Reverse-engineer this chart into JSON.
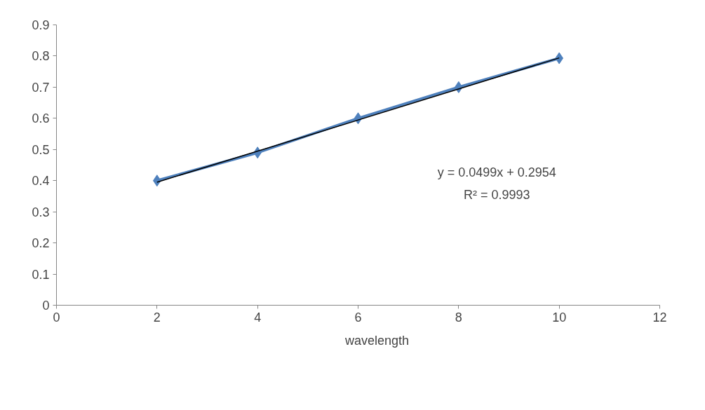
{
  "chart_data": {
    "type": "line",
    "x": [
      2,
      4,
      6,
      8,
      10
    ],
    "series": [
      {
        "name": "wavelength",
        "color": "#4f81bd",
        "values": [
          0.4,
          0.49,
          0.6,
          0.7,
          0.793
        ],
        "marker": "diamond"
      },
      {
        "type": "line",
        "color": "#000000",
        "x": [
          2,
          10
        ],
        "values": [
          0.395,
          0.794
        ],
        "marker": "none"
      }
    ],
    "annotations": [
      "y = 0.0499x + 0.2954",
      "R² = 0.9993"
    ],
    "xlim": [
      0,
      12
    ],
    "xticks": [
      0,
      2,
      4,
      6,
      8,
      10,
      12
    ],
    "ylim": [
      0,
      0.9
    ],
    "yticks": [
      0,
      0.1,
      0.2,
      0.3,
      0.4,
      0.5,
      0.6,
      0.7,
      0.8,
      0.9
    ],
    "grid": false,
    "legend": "bottom"
  }
}
